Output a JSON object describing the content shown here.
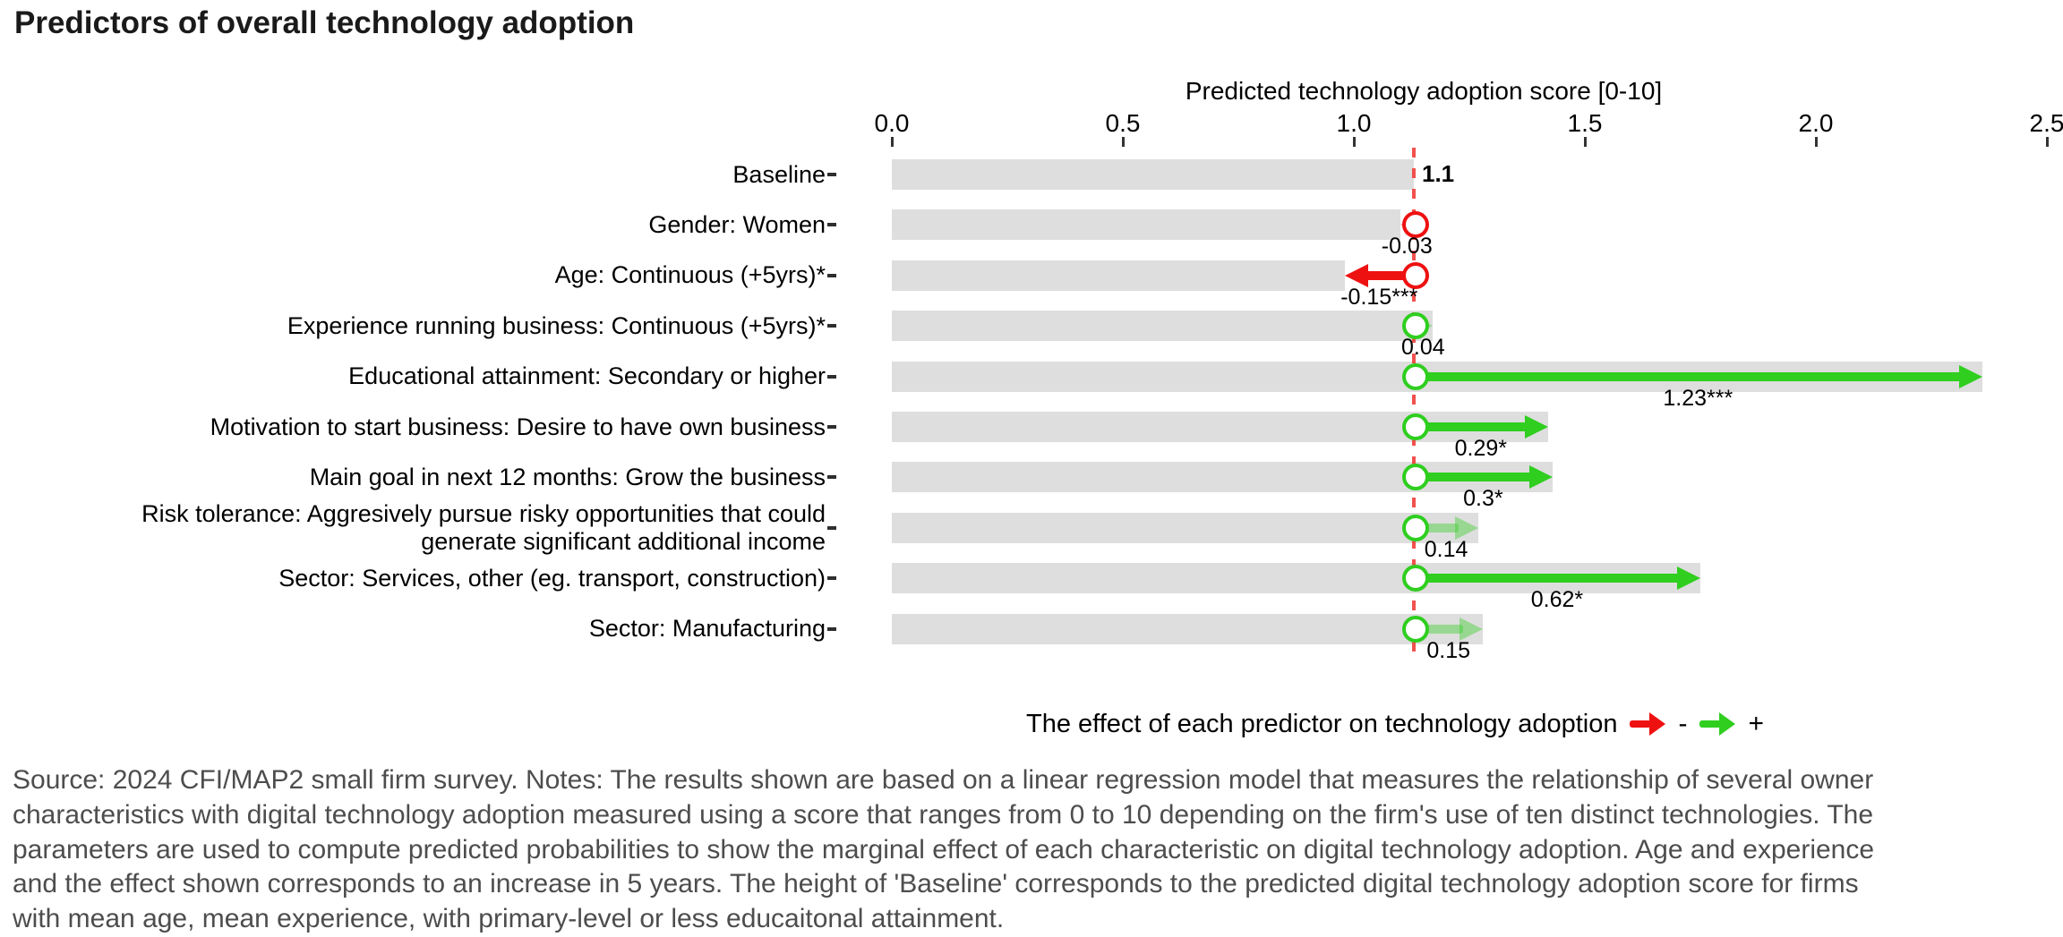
{
  "title": "Predictors of overall technology adoption",
  "axis": {
    "title": "Predicted technology adoption score [0-10]",
    "ticks": [
      "0.0",
      "0.5",
      "1.0",
      "1.5",
      "2.0",
      "2.5"
    ]
  },
  "colors": {
    "positive": "#2fce1f",
    "negative": "#ee1111",
    "bar": "#dedede",
    "baseline_line": "#f03e3a",
    "footnote_text": "#4d4d4d"
  },
  "chart_data": {
    "type": "bar",
    "title": "Predictors of overall technology adoption",
    "xlabel": "Predicted technology adoption score [0-10]",
    "xlim": [
      0,
      2.5
    ],
    "baseline_value": 1.1,
    "baseline_label": "1.1",
    "rows": [
      {
        "category": "Baseline",
        "effect": null,
        "effect_label": "1.1",
        "predicted": 1.1,
        "significant": true
      },
      {
        "category": "Gender: Women",
        "effect": -0.03,
        "effect_label": "-0.03",
        "predicted": 1.07,
        "significant": false
      },
      {
        "category": "Age: Continuous (+5yrs)*",
        "effect": -0.15,
        "effect_label": "-0.15***",
        "predicted": 0.95,
        "significant": true
      },
      {
        "category": "Experience running business: Continuous (+5yrs)*",
        "effect": 0.04,
        "effect_label": "0.04",
        "predicted": 1.14,
        "significant": false
      },
      {
        "category": "Educational attainment: Secondary or higher",
        "effect": 1.23,
        "effect_label": "1.23***",
        "predicted": 2.33,
        "significant": true
      },
      {
        "category": "Motivation to start business: Desire to have own business",
        "effect": 0.29,
        "effect_label": "0.29*",
        "predicted": 1.39,
        "significant": true
      },
      {
        "category": "Main goal in next 12 months: Grow the business",
        "effect": 0.3,
        "effect_label": "0.3*",
        "predicted": 1.4,
        "significant": true
      },
      {
        "category": "Risk tolerance: Aggresively pursue risky opportunities that could\ngenerate significant additional income",
        "effect": 0.14,
        "effect_label": "0.14",
        "predicted": 1.24,
        "significant": false
      },
      {
        "category": "Sector: Services, other (eg. transport, construction)",
        "effect": 0.62,
        "effect_label": "0.62*",
        "predicted": 1.72,
        "significant": true
      },
      {
        "category": "Sector: Manufacturing",
        "effect": 0.15,
        "effect_label": "0.15",
        "predicted": 1.25,
        "significant": false
      }
    ]
  },
  "legend": {
    "text": "The effect of each predictor on technology adoption",
    "minus_label": "-",
    "plus_label": "+"
  },
  "footnote_lines": [
    "Source: 2024 CFI/MAP2 small firm survey. Notes: The results shown are based on a linear regression model that measures the relationship of several owner",
    "characteristics with digital technology adoption measured using a score that ranges from 0 to 10 depending on the firm's use of ten distinct technologies. The",
    "parameters are used to compute predicted probabilities to show the marginal effect of each characteristic on digital technology adoption. Age and experience",
    "and the effect shown corresponds to an increase in 5 years. The height of 'Baseline' corresponds to the predicted digital technology adoption score for firms",
    "with mean age, mean experience, with primary-level or less educaitonal attainment."
  ]
}
